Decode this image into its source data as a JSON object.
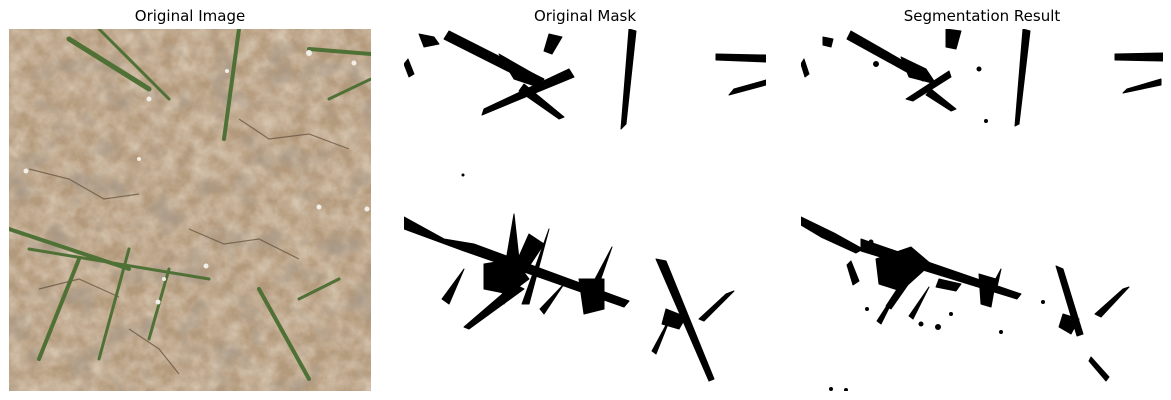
{
  "panels": [
    {
      "title": "Original Image"
    },
    {
      "title": "Original Mask"
    },
    {
      "title": "Segmentation Result"
    }
  ],
  "colors": {
    "soil": "#c2a98a",
    "soil_shadow": "#6d5a45",
    "grass": "#5a7a3a",
    "mask_fg": "#000000",
    "mask_bg": "#ffffff"
  }
}
